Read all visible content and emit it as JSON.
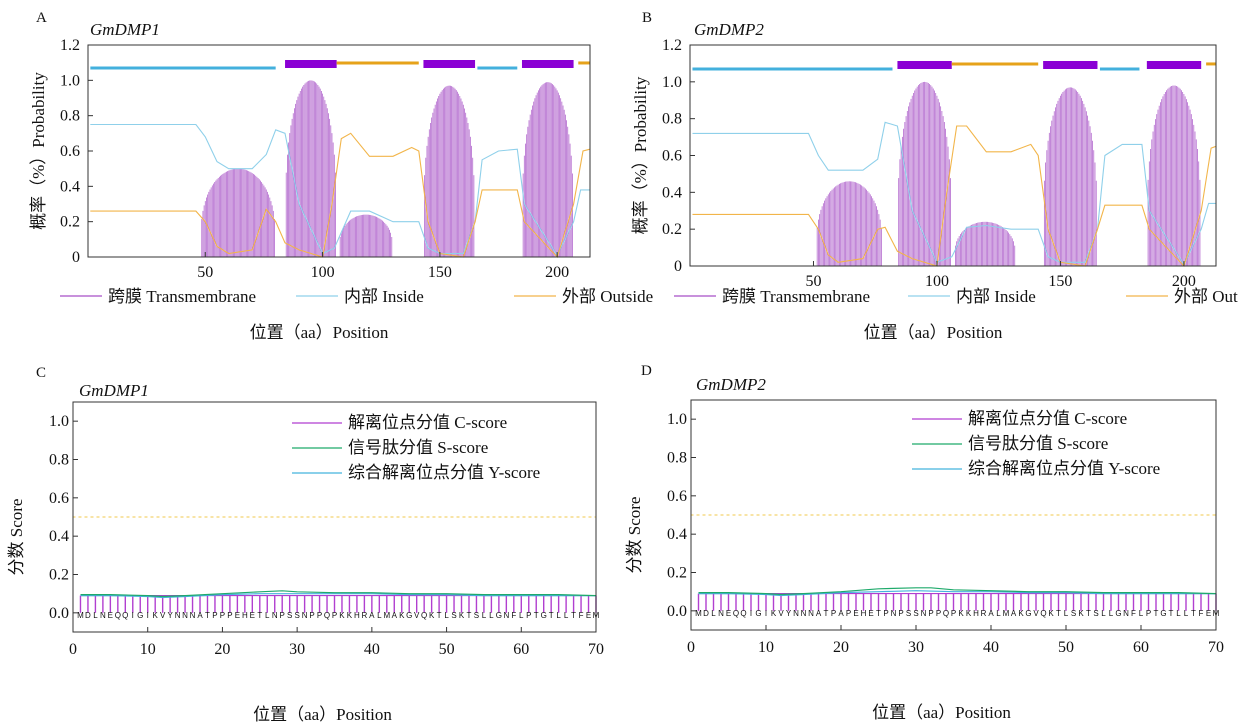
{
  "colors": {
    "transmembrane": "#a64fc6",
    "transmembrane_bar": "#8a00d4",
    "inside": "#8fd0ea",
    "inside_bar": "#43b0dd",
    "outside": "#f2b54a",
    "outside_bar": "#e6a21a",
    "c_score": "#b13fd0",
    "s_score": "#1faa6b",
    "y_score": "#45b3dd",
    "threshold": "#f2c94c"
  },
  "chart_data": [
    {
      "panel": "A",
      "type": "line",
      "title": "GmDMP1",
      "xlabel": "位置（aa）Position",
      "ylabel": "概率（%）Probability",
      "xlim": [
        0,
        214
      ],
      "ylim": [
        0,
        1.2
      ],
      "xticks": [
        50,
        100,
        150,
        200
      ],
      "yticks": [
        0,
        0.2,
        0.4,
        0.6,
        0.8,
        1.0,
        1.2
      ],
      "legend": [
        "跨膜 Transmembrane",
        "内部 Inside",
        "外部 Outside"
      ],
      "topology": [
        {
          "region": "inside",
          "start": 1,
          "end": 80
        },
        {
          "region": "transmembrane",
          "start": 84,
          "end": 106
        },
        {
          "region": "outside",
          "start": 106,
          "end": 141
        },
        {
          "region": "transmembrane",
          "start": 143,
          "end": 165
        },
        {
          "region": "inside",
          "start": 166,
          "end": 183
        },
        {
          "region": "transmembrane",
          "start": 185,
          "end": 207
        },
        {
          "region": "outside",
          "start": 209,
          "end": 214
        }
      ],
      "transmembrane_humps": [
        {
          "start": 48,
          "end": 80,
          "peak": 0.5
        },
        {
          "start": 84,
          "end": 106,
          "peak": 1.0
        },
        {
          "start": 107,
          "end": 130,
          "peak": 0.24
        },
        {
          "start": 143,
          "end": 165,
          "peak": 0.97
        },
        {
          "start": 185,
          "end": 207,
          "peak": 0.99
        }
      ],
      "inside_curve": {
        "x": [
          1,
          46,
          50,
          55,
          60,
          70,
          76,
          80,
          84,
          90,
          100,
          105,
          112,
          120,
          130,
          141,
          145,
          150,
          160,
          165,
          168,
          175,
          183,
          186,
          200,
          207,
          210,
          214
        ],
        "y": [
          0.75,
          0.75,
          0.68,
          0.54,
          0.5,
          0.5,
          0.58,
          0.72,
          0.7,
          0.3,
          0.02,
          0.05,
          0.26,
          0.26,
          0.2,
          0.2,
          0.05,
          0.02,
          0.02,
          0.2,
          0.55,
          0.6,
          0.61,
          0.3,
          0.01,
          0.2,
          0.38,
          0.38
        ]
      },
      "outside_curve": {
        "x": [
          1,
          46,
          50,
          55,
          60,
          70,
          76,
          80,
          84,
          90,
          100,
          104,
          108,
          112,
          120,
          130,
          138,
          141,
          145,
          150,
          160,
          165,
          168,
          175,
          183,
          186,
          200,
          207,
          211,
          214
        ],
        "y": [
          0.26,
          0.26,
          0.2,
          0.06,
          0.02,
          0.04,
          0.27,
          0.2,
          0.08,
          0.04,
          0.0,
          0.3,
          0.67,
          0.7,
          0.57,
          0.57,
          0.62,
          0.6,
          0.2,
          0.02,
          0.0,
          0.2,
          0.38,
          0.38,
          0.38,
          0.2,
          0.0,
          0.3,
          0.6,
          0.61
        ]
      }
    },
    {
      "panel": "B",
      "type": "line",
      "title": "GmDMP2",
      "xlabel": "位置（aa）Position",
      "ylabel": "概率（%）Probability",
      "xlim": [
        0,
        213
      ],
      "ylim": [
        0,
        1.2
      ],
      "xticks": [
        50,
        100,
        150,
        200
      ],
      "yticks": [
        0,
        0.2,
        0.4,
        0.6,
        0.8,
        1.0,
        1.2
      ],
      "legend": [
        "跨膜 Transmembrane",
        "内部 Inside",
        "外部 Outside"
      ],
      "topology": [
        {
          "region": "inside",
          "start": 1,
          "end": 82
        },
        {
          "region": "transmembrane",
          "start": 84,
          "end": 106
        },
        {
          "region": "outside",
          "start": 106,
          "end": 141
        },
        {
          "region": "transmembrane",
          "start": 143,
          "end": 165
        },
        {
          "region": "inside",
          "start": 166,
          "end": 182
        },
        {
          "region": "transmembrane",
          "start": 185,
          "end": 207
        },
        {
          "region": "outside",
          "start": 209,
          "end": 213
        }
      ],
      "transmembrane_humps": [
        {
          "start": 51,
          "end": 78,
          "peak": 0.46
        },
        {
          "start": 84,
          "end": 106,
          "peak": 1.0
        },
        {
          "start": 107,
          "end": 132,
          "peak": 0.24
        },
        {
          "start": 143,
          "end": 165,
          "peak": 0.97
        },
        {
          "start": 185,
          "end": 207,
          "peak": 0.98
        }
      ],
      "inside_curve": {
        "x": [
          1,
          48,
          52,
          56,
          60,
          70,
          76,
          79,
          84,
          90,
          100,
          106,
          112,
          120,
          130,
          141,
          145,
          150,
          160,
          165,
          168,
          175,
          183,
          186,
          200,
          207,
          210,
          213
        ],
        "y": [
          0.72,
          0.72,
          0.6,
          0.52,
          0.52,
          0.52,
          0.58,
          0.78,
          0.76,
          0.3,
          0.02,
          0.05,
          0.21,
          0.22,
          0.2,
          0.2,
          0.05,
          0.02,
          0.02,
          0.2,
          0.6,
          0.66,
          0.66,
          0.3,
          0.01,
          0.2,
          0.34,
          0.34
        ]
      },
      "outside_curve": {
        "x": [
          1,
          48,
          52,
          56,
          60,
          70,
          76,
          79,
          84,
          90,
          100,
          104,
          108,
          112,
          120,
          130,
          138,
          141,
          145,
          150,
          160,
          165,
          168,
          175,
          183,
          186,
          200,
          207,
          211,
          213
        ],
        "y": [
          0.28,
          0.28,
          0.2,
          0.06,
          0.02,
          0.04,
          0.2,
          0.21,
          0.08,
          0.04,
          0.0,
          0.4,
          0.76,
          0.76,
          0.62,
          0.62,
          0.66,
          0.6,
          0.2,
          0.02,
          0.0,
          0.2,
          0.33,
          0.33,
          0.33,
          0.2,
          0.0,
          0.3,
          0.64,
          0.65
        ]
      }
    },
    {
      "panel": "C",
      "type": "line",
      "title": "GmDMP1",
      "xlabel": "位置（aa）Position",
      "ylabel": "分数 Score",
      "xlim": [
        0,
        70
      ],
      "ylim": [
        -0.1,
        1.1
      ],
      "xticks": [
        0,
        10,
        20,
        30,
        40,
        50,
        60,
        70
      ],
      "yticks": [
        0.0,
        0.2,
        0.4,
        0.6,
        0.8,
        1.0
      ],
      "legend": [
        "解离位点分值 C-score",
        "信号肽分值 S-score",
        "综合解离位点分值 Y-score"
      ],
      "threshold": 0.5,
      "sequence": "MDLNEQQIGIKVYNNNATPPPEHETLNPSSNPPQPKKHRALMAKGVQKTLSKTSLLGNFLPTGTLLTFEM",
      "c_score_value": 0.09,
      "s_score": {
        "x": [
          1,
          5,
          10,
          12,
          15,
          20,
          25,
          28,
          30,
          35,
          40,
          45,
          50,
          55,
          60,
          65,
          70
        ],
        "y": [
          0.095,
          0.095,
          0.09,
          0.085,
          0.09,
          0.1,
          0.11,
          0.115,
          0.11,
          0.105,
          0.105,
          0.1,
          0.1,
          0.095,
          0.095,
          0.095,
          0.09
        ]
      },
      "y_score": {
        "x": [
          1,
          5,
          10,
          12,
          15,
          20,
          25,
          30,
          35,
          40,
          45,
          50,
          55,
          60,
          65,
          70
        ],
        "y": [
          0.09,
          0.09,
          0.085,
          0.08,
          0.085,
          0.095,
          0.1,
          0.1,
          0.1,
          0.1,
          0.095,
          0.095,
          0.09,
          0.09,
          0.09,
          0.09
        ]
      }
    },
    {
      "panel": "D",
      "type": "line",
      "title": "GmDMP2",
      "xlabel": "位置（aa）Position",
      "ylabel": "分数 Score",
      "xlim": [
        0,
        70
      ],
      "ylim": [
        -0.1,
        1.1
      ],
      "xticks": [
        0,
        10,
        20,
        30,
        40,
        50,
        60,
        70
      ],
      "yticks": [
        0.0,
        0.2,
        0.4,
        0.6,
        0.8,
        1.0
      ],
      "legend": [
        "解离位点分值 C-score",
        "信号肽分值 S-score",
        "综合解离位点分值 Y-score"
      ],
      "threshold": 0.5,
      "sequence": "MDLNEQQIGIKVYNNNATPAPEHETPNPSSNPPQPKKHRALMAKGVQKTLSKTSLLGNFLPTGTLLTFEM",
      "c_score_value": 0.09,
      "s_score": {
        "x": [
          1,
          5,
          10,
          12,
          15,
          20,
          25,
          30,
          32,
          35,
          40,
          45,
          50,
          55,
          60,
          65,
          70
        ],
        "y": [
          0.095,
          0.095,
          0.09,
          0.085,
          0.09,
          0.1,
          0.115,
          0.12,
          0.12,
          0.11,
          0.105,
          0.1,
          0.1,
          0.095,
          0.095,
          0.095,
          0.09
        ]
      },
      "y_score": {
        "x": [
          1,
          5,
          10,
          12,
          15,
          20,
          25,
          30,
          35,
          40,
          45,
          50,
          55,
          60,
          65,
          70
        ],
        "y": [
          0.09,
          0.09,
          0.085,
          0.08,
          0.085,
          0.095,
          0.1,
          0.105,
          0.1,
          0.1,
          0.095,
          0.095,
          0.09,
          0.09,
          0.09,
          0.09
        ]
      }
    }
  ]
}
